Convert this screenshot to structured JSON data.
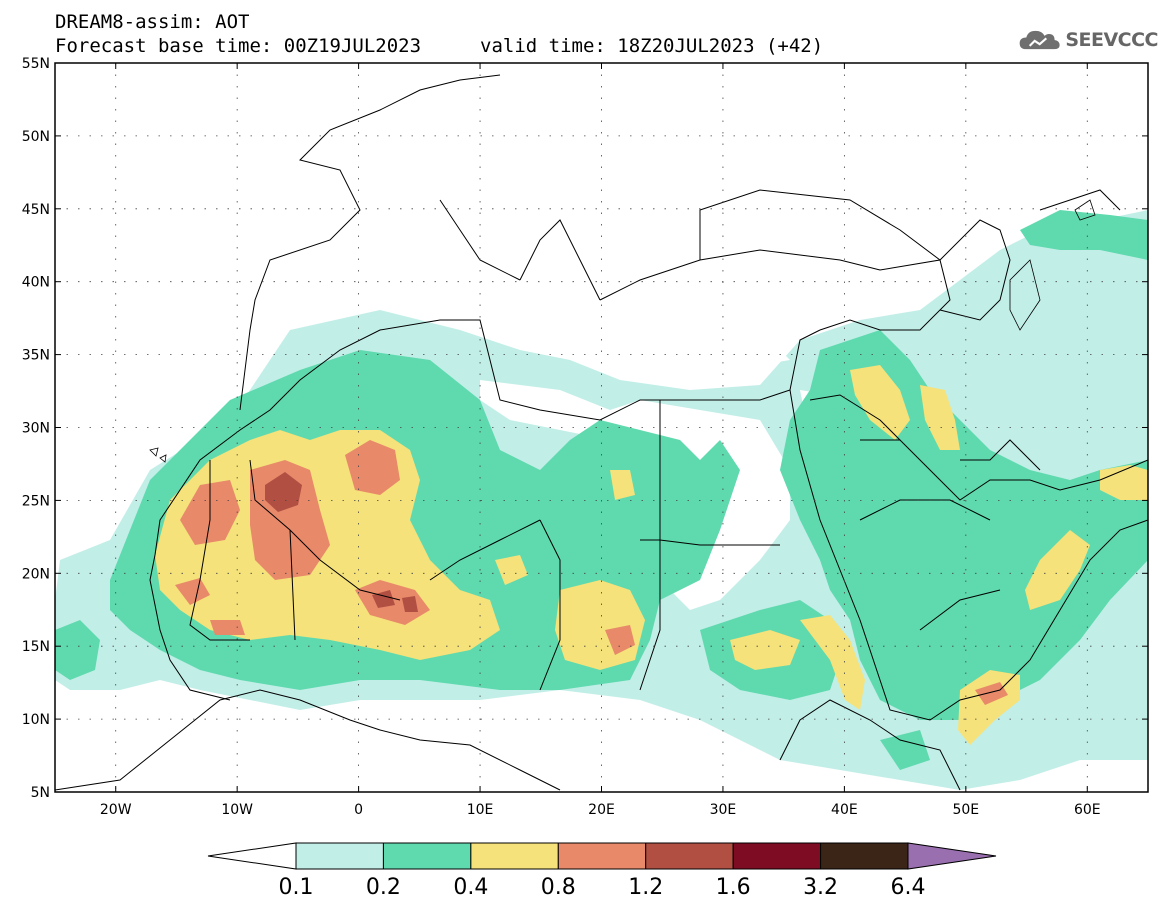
{
  "header": {
    "title_line_1": "DREAM8-assim: AOT",
    "title_line_2": "Forecast base time: 00Z19JUL2023",
    "valid_time": "valid time: 18Z20JUL2023 (+42)"
  },
  "logo": {
    "text": "SEEVCCC",
    "icon": "cloud-icon"
  },
  "map": {
    "lon_range": [
      -25,
      65
    ],
    "lat_range": [
      5,
      55
    ],
    "lat_labels": [
      "55N",
      "50N",
      "45N",
      "40N",
      "35N",
      "30N",
      "25N",
      "20N",
      "15N",
      "10N",
      "5N"
    ],
    "lon_labels": [
      "20W",
      "10W",
      "0",
      "10E",
      "20E",
      "30E",
      "40E",
      "50E",
      "60E"
    ],
    "grid": "dotted"
  },
  "colorbar": {
    "levels": [
      "0.1",
      "0.2",
      "0.4",
      "0.8",
      "1.2",
      "1.6",
      "3.2",
      "6.4"
    ],
    "colors": [
      "#ffffff",
      "#c2eee8",
      "#5fd9ae",
      "#f5e27a",
      "#e8896a",
      "#b14f43",
      "#7e0d23",
      "#3a2516",
      "#9a6fb0"
    ]
  }
}
